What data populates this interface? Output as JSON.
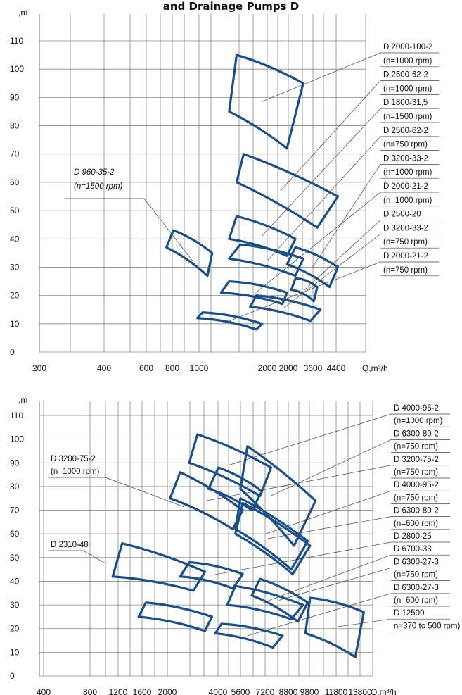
{
  "title": "and Drainage Pumps D",
  "colors": {
    "outline": "#1b4f8a",
    "grid": "#888888",
    "leader": "#444444"
  },
  "chart_data": [
    {
      "type": "area",
      "ylabel": ",m",
      "xlabel": "Q,m³/h",
      "ylim": [
        0,
        110
      ],
      "y_ticks": [
        "0",
        "10",
        "20",
        "30",
        "40",
        "50",
        "60",
        "70",
        "80",
        "90",
        "100",
        "110"
      ],
      "x_tick_labels": [
        "200",
        "400",
        "600",
        "800",
        "1000",
        "2000",
        "2800",
        "3600",
        "4400"
      ],
      "grid": true,
      "series": [
        {
          "name": "D 2000-100-2",
          "rpm": "(n=1000 rpm)",
          "corners": [
            [
              1400,
              105
            ],
            [
              2700,
              95
            ],
            [
              2300,
              72
            ],
            [
              1300,
              85
            ]
          ]
        },
        {
          "name": "D 2500-62-2",
          "rpm": "(n=1000 rpm)",
          "corners": [
            [
              1500,
              70
            ],
            [
              3800,
              55
            ],
            [
              3100,
              44
            ],
            [
              1400,
              60
            ]
          ]
        },
        {
          "name": "D 1800-31,5",
          "rpm": "(n=1500 rpm)",
          "corners": [
            [
              1400,
              48
            ],
            [
              2500,
              40
            ],
            [
              2300,
              34
            ],
            [
              1300,
              40
            ]
          ]
        },
        {
          "name": "D 2500-62-2",
          "rpm": "(n=750 rpm)",
          "corners": [
            [
              1450,
              38
            ],
            [
              2700,
              33
            ],
            [
              2500,
              27
            ],
            [
              1300,
              33
            ]
          ]
        },
        {
          "name": "D 3200-33-2",
          "rpm": "(n=1000 rpm)",
          "corners": [
            [
              2500,
              37
            ],
            [
              3800,
              30
            ],
            [
              3500,
              23
            ],
            [
              2300,
              31
            ]
          ]
        },
        {
          "name": "D 2000-21-2",
          "rpm": "(n=1000 rpm)",
          "corners": [
            [
              1300,
              25
            ],
            [
              2300,
              21
            ],
            [
              2200,
              17
            ],
            [
              1200,
              21
            ]
          ]
        },
        {
          "name": "D 2500-20",
          "rpm": "",
          "corners": [
            [
              2500,
              26
            ],
            [
              3100,
              23
            ],
            [
              3000,
              18
            ],
            [
              2400,
              22
            ]
          ]
        },
        {
          "name": "D 3200-33-2",
          "rpm": "(n=750 rpm)",
          "corners": [
            [
              1700,
              20
            ],
            [
              3200,
              15
            ],
            [
              2900,
              11
            ],
            [
              1600,
              16
            ]
          ]
        },
        {
          "name": "D 2000-21-2",
          "rpm": "(n=750 rpm)",
          "corners": [
            [
              1000,
              14
            ],
            [
              1800,
              10
            ],
            [
              1700,
              8
            ],
            [
              950,
              12
            ]
          ]
        },
        {
          "name": "D 960-35-2",
          "rpm": "(n=1500 rpm)",
          "italic": true,
          "corners": [
            [
              750,
              43
            ],
            [
              1100,
              35
            ],
            [
              1050,
              27
            ],
            [
              700,
              37
            ]
          ]
        }
      ]
    },
    {
      "type": "area",
      "ylabel": ",m",
      "xlabel": "Q,m³/h",
      "ylim": [
        0,
        110
      ],
      "y_ticks": [
        "0",
        "10",
        "20",
        "30",
        "40",
        "50",
        "60",
        "70",
        "80",
        "90",
        "100",
        "110"
      ],
      "x_tick_labels": [
        "400",
        "800",
        "1200",
        "1600",
        "2000",
        "4000",
        "5600",
        "7200",
        "8800",
        "9800",
        "11800",
        "13800"
      ],
      "grid": true,
      "series": [
        {
          "name": "D 4000-95-2",
          "rpm": "(n=1000 rpm)",
          "corners": [
            [
              2300,
              102
            ],
            [
              5200,
              88
            ],
            [
              4600,
              76
            ],
            [
              2100,
              90
            ]
          ]
        },
        {
          "name": "D 6300-80-2",
          "rpm": "(n=750 rpm)",
          "corners": [
            [
              4000,
              97
            ],
            [
              8500,
              74
            ],
            [
              6700,
              55
            ],
            [
              3700,
              79
            ]
          ]
        },
        {
          "name": "D 3200-75-2",
          "rpm": "(n=750 rpm)",
          "corners": [
            [
              1900,
              86
            ],
            [
              3800,
              70
            ],
            [
              3400,
              62
            ],
            [
              1700,
              75
            ]
          ]
        },
        {
          "name": "D 4000-95-2",
          "rpm": "(n=750 rpm)",
          "corners": [
            [
              3700,
              75
            ],
            [
              7800,
              57
            ],
            [
              6500,
              45
            ],
            [
              3500,
              62
            ]
          ]
        },
        {
          "name": "D 6300-80-2",
          "rpm": "(n=600 rpm)",
          "corners": [
            [
              3800,
              73
            ],
            [
              8000,
              55
            ],
            [
              6600,
              43
            ],
            [
              3500,
              60
            ]
          ]
        },
        {
          "name": "D 2800-25",
          "rpm": "",
          "corners": [
            [
              2100,
              48
            ],
            [
              3800,
              43
            ],
            [
              3400,
              37
            ],
            [
              1900,
              42
            ]
          ]
        },
        {
          "name": "D 6700-33",
          "rpm": "",
          "corners": [
            [
              3500,
              38
            ],
            [
              7400,
              30
            ],
            [
              6500,
              24
            ],
            [
              3200,
              30
            ]
          ]
        },
        {
          "name": "D 6300-27-3",
          "rpm": "(n=750 rpm)",
          "corners": [
            [
              4600,
              41
            ],
            [
              7800,
              31
            ],
            [
              7000,
              23
            ],
            [
              4200,
              34
            ]
          ]
        },
        {
          "name": "D 6300-27-3",
          "rpm": "(n=600 rpm)",
          "corners": [
            [
              3000,
              22
            ],
            [
              5900,
              17
            ],
            [
              5300,
              12
            ],
            [
              2800,
              18
            ]
          ]
        },
        {
          "name": "D 12500...",
          "rpm": "n=370 to 500 rpm)",
          "corners": [
            [
              8000,
              33
            ],
            [
              14500,
              27
            ],
            [
              13200,
              8
            ],
            [
              7600,
              18
            ]
          ]
        },
        {
          "name": "D 3200-75-2",
          "rpm": "(n=1000 rpm)",
          "corners": [
            [
              2900,
              88
            ],
            [
              4700,
              78
            ],
            [
              4200,
              70
            ],
            [
              2600,
              79
            ]
          ]
        },
        {
          "name": "D 2310-48",
          "rpm": "",
          "corners": [
            [
              1000,
              56
            ],
            [
              2500,
              44
            ],
            [
              2200,
              36
            ],
            [
              900,
              42
            ]
          ]
        },
        {
          "name": "D 6300-27-3",
          "rpm": "",
          "corners": [
            [
              1300,
              31
            ],
            [
              2700,
              25
            ],
            [
              2500,
              19
            ],
            [
              1200,
              25
            ]
          ]
        }
      ]
    }
  ],
  "annotations": {
    "top": [
      "D 2000-100-2",
      "(n=1000 rpm)",
      "D 2500-62-2",
      "(n=1000 rpm)",
      "D 1800-31,5",
      "(n=1500 rpm)",
      "D 2500-62-2",
      "(n=750 rpm)",
      "D 3200-33-2",
      "(n=1000 rpm)",
      "D 2000-21-2",
      "(n=1000 rpm)",
      "D 2500-20",
      "D 3200-33-2",
      "(n=750 rpm)",
      "D 2000-21-2",
      "(n=750 rpm)"
    ],
    "bottom": [
      "D 4000-95-2",
      "(n=1000 rpm)",
      "D 6300-80-2",
      "(n=750 rpm)",
      "D 3200-75-2",
      "(n=750 rpm)",
      "D 4000-95-2",
      "(n=750 rpm)",
      "D 6300-80-2",
      "(n=600 rpm)",
      "D 2800-25",
      "D 6700-33",
      "D 6300-27-3",
      "(n=750 rpm)",
      "D 6300-27-3",
      "(n=600 rpm)",
      "D 12500...",
      "n=370 to 500 rpm)"
    ],
    "top_left_label": [
      "D 960-35-2",
      "(n=1500 rpm)"
    ],
    "bottom_left_labels": [
      [
        "D 3200-75-2",
        "(n=1000 rpm)"
      ],
      [
        "D 2310-48"
      ]
    ]
  }
}
